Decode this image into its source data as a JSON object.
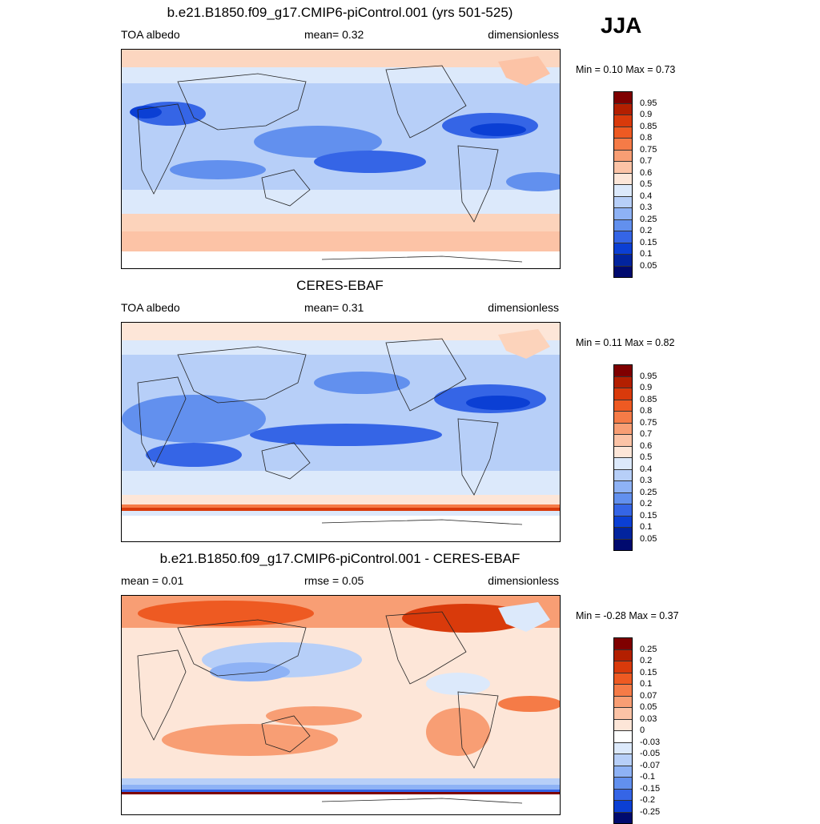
{
  "season": "JJA",
  "panels": [
    {
      "title": "b.e21.B1850.f09_g17.CMIP6-piControl.001 (yrs 501-525)",
      "left_label": "TOA albedo",
      "center_label": "mean=   0.32",
      "right_label": "dimensionless",
      "minmax": "Min =   0.10 Max =   0.73",
      "colorbar_labels": [
        "0.95",
        "0.9",
        "0.85",
        "0.8",
        "0.75",
        "0.7",
        "0.6",
        "0.5",
        "0.4",
        "0.3",
        "0.25",
        "0.2",
        "0.15",
        "0.1",
        "0.05"
      ],
      "colorbar_colors": [
        "#7f0000",
        "#b31f00",
        "#d93a0b",
        "#ee5a22",
        "#f57b47",
        "#f89e74",
        "#fcc3a6",
        "#fde6d8",
        "#dce9fb",
        "#b7cff8",
        "#8eb2f5",
        "#6290ee",
        "#3565e6",
        "#0b3fd4",
        "#02249e",
        "#000a6e"
      ]
    },
    {
      "title": "CERES-EBAF",
      "left_label": "TOA albedo",
      "center_label": "mean=   0.31",
      "right_label": "dimensionless",
      "minmax": "Min =   0.11 Max =   0.82",
      "colorbar_labels": [
        "0.95",
        "0.9",
        "0.85",
        "0.8",
        "0.75",
        "0.7",
        "0.6",
        "0.5",
        "0.4",
        "0.3",
        "0.25",
        "0.2",
        "0.15",
        "0.1",
        "0.05"
      ],
      "colorbar_colors": [
        "#7f0000",
        "#b31f00",
        "#d93a0b",
        "#ee5a22",
        "#f57b47",
        "#f89e74",
        "#fcc3a6",
        "#fde6d8",
        "#dce9fb",
        "#b7cff8",
        "#8eb2f5",
        "#6290ee",
        "#3565e6",
        "#0b3fd4",
        "#02249e",
        "#000a6e"
      ]
    },
    {
      "title": "b.e21.B1850.f09_g17.CMIP6-piControl.001 - CERES-EBAF",
      "left_label": "mean =   0.01",
      "center_label": "rmse =   0.05",
      "right_label": "dimensionless",
      "minmax": "Min =  -0.28 Max =   0.37",
      "colorbar_labels": [
        "0.25",
        "0.2",
        "0.15",
        "0.1",
        "0.07",
        "0.05",
        "0.03",
        "0",
        "-0.03",
        "-0.05",
        "-0.07",
        "-0.1",
        "-0.15",
        "-0.2",
        "-0.25"
      ],
      "colorbar_colors": [
        "#7f0000",
        "#b31f00",
        "#d93a0b",
        "#ee5a22",
        "#f57b47",
        "#f89e74",
        "#fcc3a6",
        "#fde6d8",
        "#ffffff",
        "#dce9fb",
        "#b7cff8",
        "#8eb2f5",
        "#6290ee",
        "#3565e6",
        "#0b3fd4",
        "#000a6e"
      ]
    }
  ]
}
